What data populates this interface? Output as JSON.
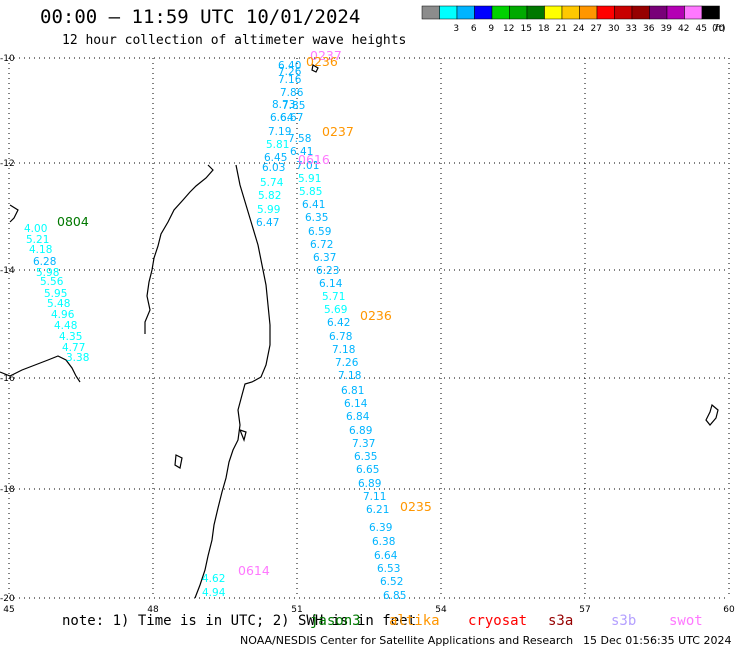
{
  "header": {
    "title": "00:00 – 11:59 UTC 10/01/2024",
    "subtitle": "12 hour collection of altimeter wave heights"
  },
  "legend": {
    "unit": "(ft)",
    "levels": [
      {
        "label": "",
        "color": "#8c8c8c"
      },
      {
        "label": "3",
        "color": "#00ffff"
      },
      {
        "label": "6",
        "color": "#00b4ff"
      },
      {
        "label": "9",
        "color": "#0000ff"
      },
      {
        "label": "12",
        "color": "#00d200"
      },
      {
        "label": "15",
        "color": "#00aa00"
      },
      {
        "label": "18",
        "color": "#007800"
      },
      {
        "label": "21",
        "color": "#ffff00"
      },
      {
        "label": "24",
        "color": "#ffc800"
      },
      {
        "label": "27",
        "color": "#ff9600"
      },
      {
        "label": "30",
        "color": "#ff0000"
      },
      {
        "label": "33",
        "color": "#c80000"
      },
      {
        "label": "36",
        "color": "#960000"
      },
      {
        "label": "39",
        "color": "#780078"
      },
      {
        "label": "42",
        "color": "#b400b4"
      },
      {
        "label": "45",
        "color": "#ff78ff"
      },
      {
        "label": "70",
        "color": "#000000"
      }
    ]
  },
  "axes": {
    "lon_ticks": [
      "45",
      "48",
      "51",
      "54",
      "57",
      "60"
    ],
    "lat_ticks": [
      "-10",
      "-12",
      "-14",
      "-16",
      "-18",
      "-20"
    ]
  },
  "track_labels": [
    {
      "text": "0237",
      "color": "#ff78ff"
    },
    {
      "text": "0236",
      "color": "#ff9600"
    },
    {
      "text": "0237",
      "color": "#ff9600"
    },
    {
      "text": "0616",
      "color": "#ff78ff"
    },
    {
      "text": "0804",
      "color": "#007800"
    },
    {
      "text": "0236",
      "color": "#ff9600"
    },
    {
      "text": "0235",
      "color": "#ff9600"
    },
    {
      "text": "0614",
      "color": "#ff78ff"
    }
  ],
  "swh_values": [
    {
      "text": "6.40",
      "color": "#00b4ff"
    },
    {
      "text": "7.26",
      "color": "#00b4ff"
    },
    {
      "text": "7.16",
      "color": "#00b4ff"
    },
    {
      "text": "7.86",
      "color": "#00b4ff"
    },
    {
      "text": "7.85",
      "color": "#00b4ff"
    },
    {
      "text": "8.73",
      "color": "#00b4ff"
    },
    {
      "text": "6.67",
      "color": "#00b4ff"
    },
    {
      "text": "6.64",
      "color": "#00b4ff"
    },
    {
      "text": "7.19",
      "color": "#00b4ff"
    },
    {
      "text": "5.81",
      "color": "#00ffff"
    },
    {
      "text": "6.45",
      "color": "#00b4ff"
    },
    {
      "text": "6.03",
      "color": "#00b4ff"
    },
    {
      "text": "5.74",
      "color": "#00ffff"
    },
    {
      "text": "5.82",
      "color": "#00ffff"
    },
    {
      "text": "5.99",
      "color": "#00ffff"
    },
    {
      "text": "6.47",
      "color": "#00b4ff"
    },
    {
      "text": "7.58",
      "color": "#00b4ff"
    },
    {
      "text": "6.41",
      "color": "#00b4ff"
    },
    {
      "text": "7.01",
      "color": "#00b4ff"
    },
    {
      "text": "5.91",
      "color": "#00ffff"
    },
    {
      "text": "5.85",
      "color": "#00ffff"
    },
    {
      "text": "6.41",
      "color": "#00b4ff"
    },
    {
      "text": "6.35",
      "color": "#00b4ff"
    },
    {
      "text": "6.59",
      "color": "#00b4ff"
    },
    {
      "text": "6.72",
      "color": "#00b4ff"
    },
    {
      "text": "6.37",
      "color": "#00b4ff"
    },
    {
      "text": "6.23",
      "color": "#00b4ff"
    },
    {
      "text": "6.14",
      "color": "#00b4ff"
    },
    {
      "text": "5.71",
      "color": "#00ffff"
    },
    {
      "text": "5.69",
      "color": "#00ffff"
    },
    {
      "text": "6.42",
      "color": "#00b4ff"
    },
    {
      "text": "6.78",
      "color": "#00b4ff"
    },
    {
      "text": "7.18",
      "color": "#00b4ff"
    },
    {
      "text": "7.26",
      "color": "#00b4ff"
    },
    {
      "text": "7.18",
      "color": "#00b4ff"
    },
    {
      "text": "6.81",
      "color": "#00b4ff"
    },
    {
      "text": "6.14",
      "color": "#00b4ff"
    },
    {
      "text": "6.84",
      "color": "#00b4ff"
    },
    {
      "text": "6.89",
      "color": "#00b4ff"
    },
    {
      "text": "7.37",
      "color": "#00b4ff"
    },
    {
      "text": "6.35",
      "color": "#00b4ff"
    },
    {
      "text": "6.65",
      "color": "#00b4ff"
    },
    {
      "text": "6.89",
      "color": "#00b4ff"
    },
    {
      "text": "7.11",
      "color": "#00b4ff"
    },
    {
      "text": "6.21",
      "color": "#00b4ff"
    },
    {
      "text": "6.39",
      "color": "#00b4ff"
    },
    {
      "text": "6.38",
      "color": "#00b4ff"
    },
    {
      "text": "6.64",
      "color": "#00b4ff"
    },
    {
      "text": "6.53",
      "color": "#00b4ff"
    },
    {
      "text": "6.52",
      "color": "#00b4ff"
    },
    {
      "text": "6.85",
      "color": "#00b4ff"
    },
    {
      "text": "4.00",
      "color": "#00ffff"
    },
    {
      "text": "5.21",
      "color": "#00ffff"
    },
    {
      "text": "4.18",
      "color": "#00ffff"
    },
    {
      "text": "6.28",
      "color": "#00b4ff"
    },
    {
      "text": "5.98",
      "color": "#00ffff"
    },
    {
      "text": "5.56",
      "color": "#00ffff"
    },
    {
      "text": "5.95",
      "color": "#00ffff"
    },
    {
      "text": "5.48",
      "color": "#00ffff"
    },
    {
      "text": "4.96",
      "color": "#00ffff"
    },
    {
      "text": "4.48",
      "color": "#00ffff"
    },
    {
      "text": "4.35",
      "color": "#00ffff"
    },
    {
      "text": "4.77",
      "color": "#00ffff"
    },
    {
      "text": "3.38",
      "color": "#00ffff"
    },
    {
      "text": "4.62",
      "color": "#00ffff"
    },
    {
      "text": "4.94",
      "color": "#00ffff"
    }
  ],
  "footer": {
    "note": "note: 1) Time is in UTC; 2) SWH is in feet",
    "satellites": [
      {
        "name": "jason3",
        "color": "#007800"
      },
      {
        "name": "altika",
        "color": "#ff9600"
      },
      {
        "name": "cryosat",
        "color": "#ff0000"
      },
      {
        "name": "s3a",
        "color": "#960000"
      },
      {
        "name": "s3b",
        "color": "#b4a0ff"
      },
      {
        "name": "swot",
        "color": "#ff78ff"
      }
    ],
    "credit": "NOAA/NESDIS Center for Satellite Applications and Research",
    "timestamp": "15 Dec 01:56:35 UTC 2024"
  }
}
